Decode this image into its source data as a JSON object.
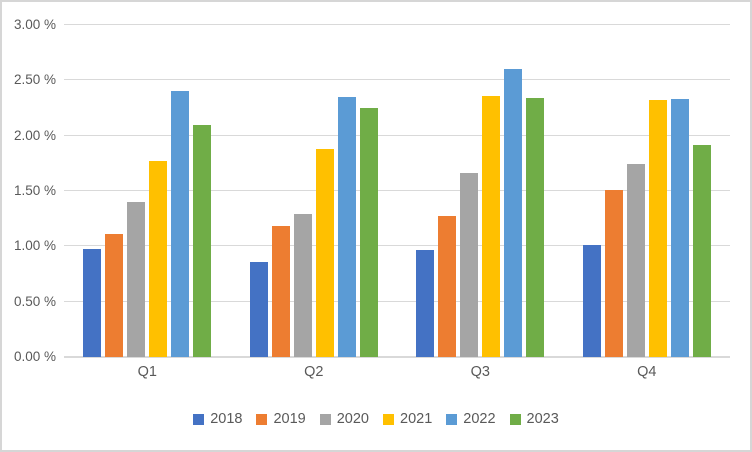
{
  "chart_data": {
    "type": "bar",
    "title": "",
    "xlabel": "",
    "ylabel": "",
    "categories": [
      "Q1",
      "Q2",
      "Q3",
      "Q4"
    ],
    "series": [
      {
        "name": "2018",
        "color": "#4472C4",
        "values": [
          0.98,
          0.86,
          0.97,
          1.01
        ]
      },
      {
        "name": "2019",
        "color": "#ED7D31",
        "values": [
          1.11,
          1.18,
          1.27,
          1.51
        ]
      },
      {
        "name": "2020",
        "color": "#A5A5A5",
        "values": [
          1.4,
          1.29,
          1.66,
          1.74
        ]
      },
      {
        "name": "2021",
        "color": "#FFC000",
        "values": [
          1.77,
          1.88,
          2.36,
          2.32
        ]
      },
      {
        "name": "2022",
        "color": "#5B9BD5",
        "values": [
          2.4,
          2.35,
          2.6,
          2.33
        ]
      },
      {
        "name": "2023",
        "color": "#70AD47",
        "values": [
          2.1,
          2.25,
          2.34,
          1.92
        ]
      }
    ],
    "ylim": [
      0,
      3.0
    ],
    "ytick_step": 0.5,
    "ytick_labels": [
      "0.00 %",
      "0.50 %",
      "1.00 %",
      "1.50 %",
      "2.00 %",
      "2.50 %",
      "3.00 %"
    ],
    "grid": true,
    "legend_position": "bottom"
  },
  "style": {
    "gridline_color": "#D9D9D9",
    "axis_text_color": "#595959",
    "frame_border_color": "#D6D6D6",
    "background_color": "#FFFFFF"
  }
}
